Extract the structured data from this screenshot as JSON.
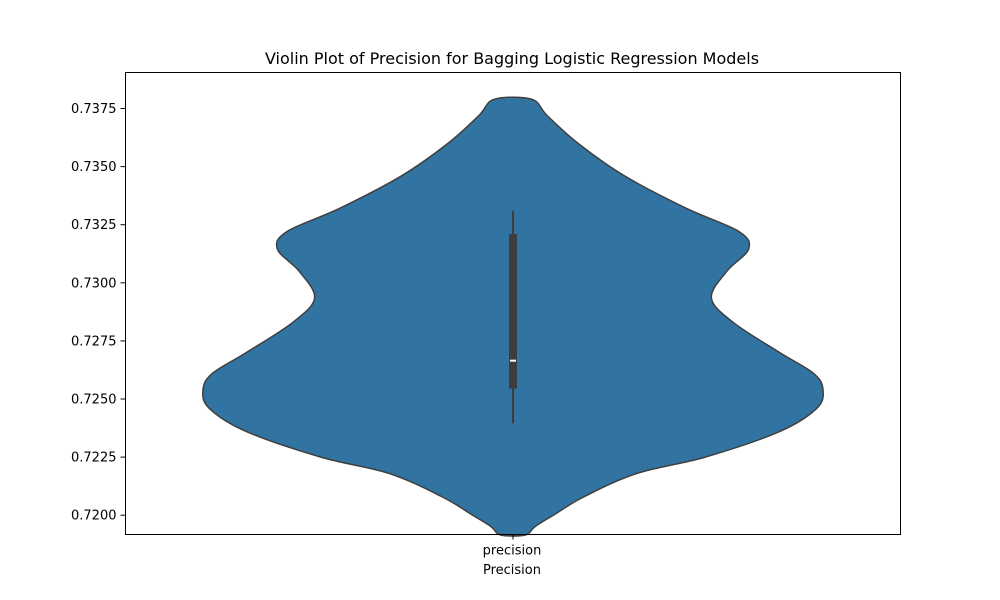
{
  "chart_data": {
    "type": "violin",
    "title": "Violin Plot of Precision for Bagging Logistic Regression Models",
    "xlabel": "Precision",
    "ylabel": "",
    "categories": [
      "precision"
    ],
    "ylim": [
      0.71917,
      0.73905
    ],
    "yticks": [
      "0.7200",
      "0.7225",
      "0.7250",
      "0.7275",
      "0.7300",
      "0.7325",
      "0.7350",
      "0.7375"
    ],
    "density_profile": [
      [
        0.71915,
        0.04
      ],
      [
        0.7195,
        0.07
      ],
      [
        0.72,
        0.13
      ],
      [
        0.7208,
        0.23
      ],
      [
        0.7218,
        0.4
      ],
      [
        0.7225,
        0.62
      ],
      [
        0.7236,
        0.86
      ],
      [
        0.7246,
        0.98
      ],
      [
        0.7254,
        1.0
      ],
      [
        0.7261,
        0.97
      ],
      [
        0.727,
        0.86
      ],
      [
        0.7283,
        0.71
      ],
      [
        0.72935,
        0.64
      ],
      [
        0.7305,
        0.69
      ],
      [
        0.73145,
        0.76
      ],
      [
        0.7322,
        0.73
      ],
      [
        0.7332,
        0.56
      ],
      [
        0.7346,
        0.36
      ],
      [
        0.736,
        0.21
      ],
      [
        0.7372,
        0.11
      ],
      [
        0.7379,
        0.06
      ]
    ],
    "box": {
      "whisker_low": 0.72395,
      "q1": 0.72545,
      "median": 0.72665,
      "q3": 0.7321,
      "whisker_high": 0.7331
    },
    "colors": {
      "fill": "#3274a1",
      "edge": "#3f3f3f",
      "box": "#3d3d3d",
      "median": "#ffffff"
    },
    "grid": false,
    "legend": "none"
  }
}
